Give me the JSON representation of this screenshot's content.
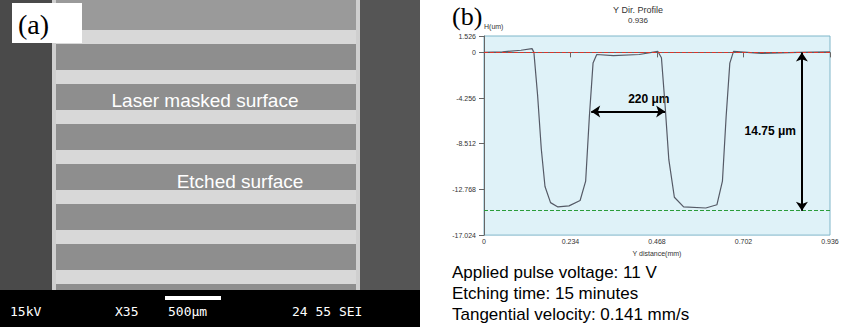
{
  "panel_a": {
    "label": "(a)",
    "texts": [
      "Laser masked surface",
      "Etched surface"
    ],
    "footer": [
      "15kV",
      "X35",
      "500μm",
      "24 55 SEI"
    ]
  },
  "panel_b_label": "(b)",
  "conditions": [
    "Applied pulse voltage: 11 V",
    "Etching time: 15 minutes",
    "Tangential velocity: 0.141 mm/s"
  ],
  "chart_data": {
    "type": "line",
    "title": "Y Dir. Profile",
    "subtitle": "0.936",
    "x_label": "Y distance(mm)",
    "y_label": "H(um)",
    "color": "#555a66",
    "x": [
      0,
      0.05,
      0.1,
      0.13,
      0.135,
      0.145,
      0.155,
      0.165,
      0.18,
      0.2,
      0.23,
      0.26,
      0.275,
      0.285,
      0.295,
      0.305,
      0.35,
      0.42,
      0.47,
      0.48,
      0.49,
      0.5,
      0.515,
      0.54,
      0.6,
      0.63,
      0.645,
      0.655,
      0.665,
      0.675,
      0.75,
      0.85,
      0.936
    ],
    "values": [
      0,
      0.05,
      0.2,
      0.35,
      0,
      -4,
      -9,
      -12.5,
      -14,
      -14.4,
      -14.3,
      -13.8,
      -12,
      -6,
      -1,
      -0.2,
      -0.3,
      -0.2,
      0.1,
      -0.5,
      -5,
      -10,
      -13.5,
      -14.4,
      -14.5,
      -14.2,
      -12,
      -6,
      -1,
      0.1,
      -0.1,
      0,
      0.05
    ],
    "xlim": [
      0,
      0.936
    ],
    "xticks": [
      0,
      0.234,
      0.468,
      0.702,
      0.936
    ],
    "ylim": [
      -17.024,
      1.526
    ],
    "yticks": [
      -17.024,
      -12.768,
      -8.512,
      -4.256,
      0,
      1.526
    ],
    "grid": false,
    "annotations": [
      {
        "text": "220 μm",
        "x": [
          0.29,
          0.49
        ],
        "y": -5.5
      },
      {
        "text": "14.75 μm",
        "x": 0.86,
        "y": [
          0,
          -14.75
        ]
      }
    ]
  }
}
